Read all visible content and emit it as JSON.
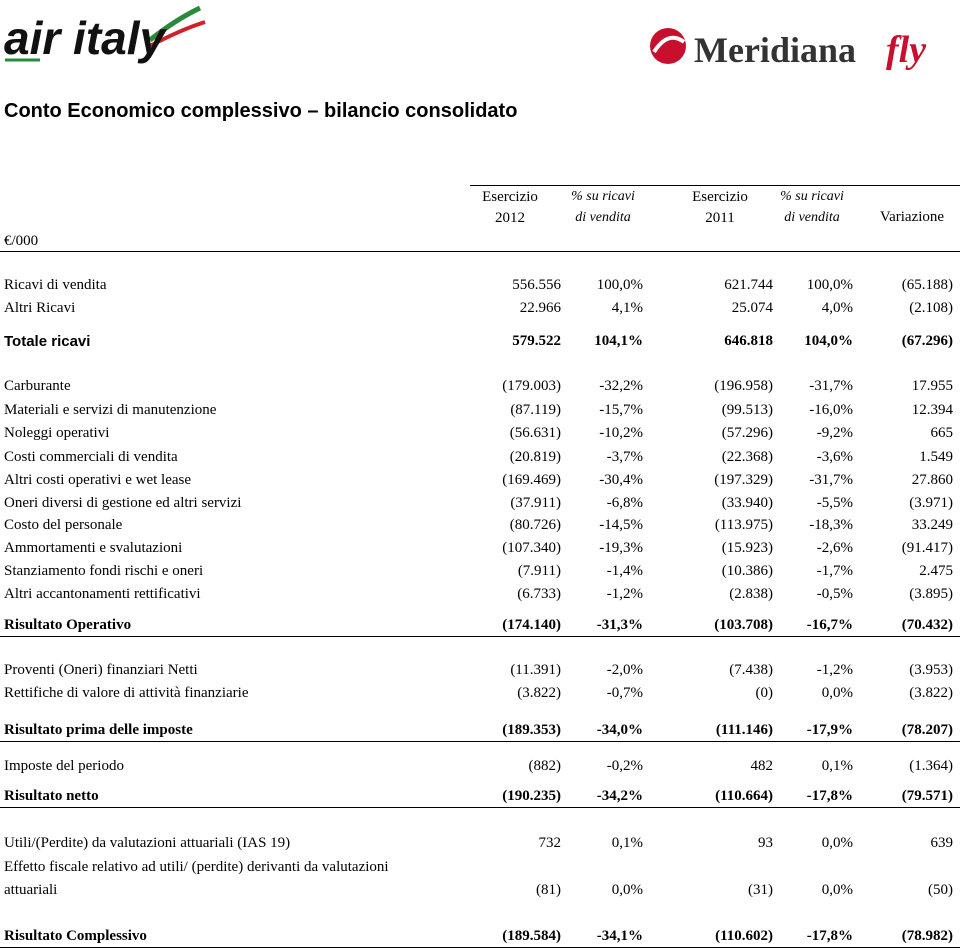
{
  "logos": {
    "left": "air italy",
    "right_main": "Meridiana",
    "right_accent": "fly"
  },
  "title": "Conto Economico complessivo – bilancio consolidato",
  "table": {
    "unit": "€/000",
    "columns": [
      {
        "lines": [
          "Esercizio",
          "2012"
        ],
        "italic": false
      },
      {
        "lines": [
          "% su ricavi",
          "di vendita"
        ],
        "italic": true
      },
      {
        "lines": [
          "Esercizio",
          "2011"
        ],
        "italic": false
      },
      {
        "lines": [
          "% su ricavi",
          "di vendita"
        ],
        "italic": true
      },
      {
        "lines": [
          "Variazione"
        ],
        "italic": false
      }
    ],
    "rows": [
      {
        "label": [
          "Ricavi di vendita"
        ],
        "values": [
          "556.556",
          "100,0%",
          "621.744",
          "100,0%",
          "(65.188)"
        ]
      },
      {
        "label": [
          "Altri Ricavi"
        ],
        "values": [
          "22.966",
          "4,1%",
          "25.074",
          "4,0%",
          "(2.108)"
        ]
      },
      {
        "label": [
          "Totale ricavi"
        ],
        "values": [
          "579.522",
          "104,1%",
          "646.818",
          "104,0%",
          "(67.296)"
        ],
        "bold": true,
        "sans": true
      },
      {
        "label": [
          "Carburante"
        ],
        "values": [
          "(179.003)",
          "-32,2%",
          "(196.958)",
          "-31,7%",
          "17.955"
        ]
      },
      {
        "label": [
          "Materiali e servizi di manutenzione"
        ],
        "values": [
          "(87.119)",
          "-15,7%",
          "(99.513)",
          "-16,0%",
          "12.394"
        ]
      },
      {
        "label": [
          "Noleggi operativi"
        ],
        "values": [
          "(56.631)",
          "-10,2%",
          "(57.296)",
          "-9,2%",
          "665"
        ]
      },
      {
        "label": [
          "Costi commerciali di vendita"
        ],
        "values": [
          "(20.819)",
          "-3,7%",
          "(22.368)",
          "-3,6%",
          "1.549"
        ]
      },
      {
        "label": [
          "Altri costi operativi e wet lease"
        ],
        "values": [
          "(169.469)",
          "-30,4%",
          "(197.329)",
          "-31,7%",
          "27.860"
        ]
      },
      {
        "label": [
          "Oneri diversi di gestione ed altri servizi"
        ],
        "values": [
          "(37.911)",
          "-6,8%",
          "(33.940)",
          "-5,5%",
          "(3.971)"
        ]
      },
      {
        "label": [
          "Costo del personale"
        ],
        "values": [
          "(80.726)",
          "-14,5%",
          "(113.975)",
          "-18,3%",
          "33.249"
        ]
      },
      {
        "label": [
          "Ammortamenti e svalutazioni"
        ],
        "values": [
          "(107.340)",
          "-19,3%",
          "(15.923)",
          "-2,6%",
          "(91.417)"
        ]
      },
      {
        "label": [
          "Stanziamento fondi rischi e oneri"
        ],
        "values": [
          "(7.911)",
          "-1,4%",
          "(10.386)",
          "-1,7%",
          "2.475"
        ]
      },
      {
        "label": [
          "Altri accantonamenti rettificativi"
        ],
        "values": [
          "(6.733)",
          "-1,2%",
          "(2.838)",
          "-0,5%",
          "(3.895)"
        ]
      },
      {
        "label": [
          "Risultato Operativo"
        ],
        "values": [
          "(174.140)",
          "-31,3%",
          "(103.708)",
          "-16,7%",
          "(70.432)"
        ],
        "bold": true,
        "rule": true
      },
      {
        "label": [
          "Proventi (Oneri) finanziari Netti"
        ],
        "values": [
          "(11.391)",
          "-2,0%",
          "(7.438)",
          "-1,2%",
          "(3.953)"
        ]
      },
      {
        "label": [
          "Rettifiche di valore di attività finanziarie"
        ],
        "values": [
          "(3.822)",
          "-0,7%",
          "(0)",
          "0,0%",
          "(3.822)"
        ]
      },
      {
        "label": [
          "Risultato prima delle imposte"
        ],
        "values": [
          "(189.353)",
          "-34,0%",
          "(111.146)",
          "-17,9%",
          "(78.207)"
        ],
        "bold": true,
        "rule": true
      },
      {
        "label": [
          "Imposte del periodo"
        ],
        "values": [
          "(882)",
          "-0,2%",
          "482",
          "0,1%",
          "(1.364)"
        ]
      },
      {
        "label": [
          "Risultato netto"
        ],
        "values": [
          "(190.235)",
          "-34,2%",
          "(110.664)",
          "-17,8%",
          "(79.571)"
        ],
        "bold": true,
        "rule": true
      },
      {
        "label": [
          "Utili/(Perdite) da valutazioni attuariali (IAS 19)"
        ],
        "values": [
          "732",
          "0,1%",
          "93",
          "0,0%",
          "639"
        ]
      },
      {
        "label": [
          "Effetto fiscale relativo ad utili/ (perdite) derivanti da valutazioni",
          "attuariali"
        ],
        "values": [
          "(81)",
          "0,0%",
          "(31)",
          "0,0%",
          "(50)"
        ]
      },
      {
        "label": [
          "Risultato Complessivo"
        ],
        "values": [
          "(189.584)",
          "-34,1%",
          "(110.602)",
          "-17,8%",
          "(78.982)"
        ],
        "bold": true,
        "rule": true
      }
    ]
  }
}
